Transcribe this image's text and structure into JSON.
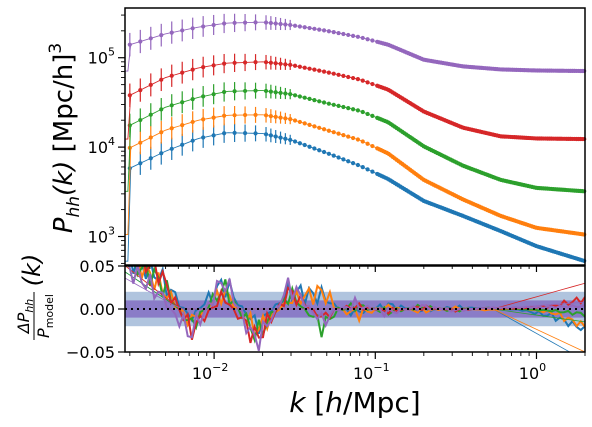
{
  "chart_data": [
    {
      "panel": "top",
      "type": "scatter",
      "ylabel": "P_{hh}(k) [Mpc/h]^3",
      "ylabel_parts": {
        "main": "P",
        "sub": "hh",
        "arg": "(k)",
        "units": " [Mpc/h]",
        "exp": "3"
      },
      "x_scale": "log",
      "y_scale": "log",
      "xlim": [
        0.0028,
        2.0
      ],
      "ylim": [
        480,
        360000
      ],
      "yticks": [
        {
          "value": 1000,
          "mant": "10",
          "exp": "3"
        },
        {
          "value": 10000,
          "mant": "10",
          "exp": "4"
        },
        {
          "value": 100000,
          "mant": "10",
          "exp": "5"
        }
      ],
      "grid": false,
      "legend": "none",
      "series_note": "five halo mass bins; points = measured spectra, thin line = model",
      "series": [
        {
          "color": "#1f77b4",
          "points": [
            [
              0.003,
              5800
            ],
            [
              0.005,
              9000
            ],
            [
              0.008,
              12500
            ],
            [
              0.012,
              14500
            ],
            [
              0.02,
              14200
            ],
            [
              0.03,
              12000
            ],
            [
              0.05,
              8600
            ],
            [
              0.08,
              6200
            ],
            [
              0.12,
              4400
            ],
            [
              0.2,
              2500
            ],
            [
              0.35,
              1700
            ],
            [
              0.6,
              1150
            ],
            [
              1.0,
              780
            ],
            [
              2.0,
              530
            ]
          ]
        },
        {
          "color": "#ff7f0e",
          "points": [
            [
              0.003,
              9800
            ],
            [
              0.005,
              15500
            ],
            [
              0.008,
              20000
            ],
            [
              0.012,
              22700
            ],
            [
              0.02,
              23000
            ],
            [
              0.03,
              20500
            ],
            [
              0.05,
              15500
            ],
            [
              0.08,
              12000
            ],
            [
              0.12,
              8500
            ],
            [
              0.2,
              4300
            ],
            [
              0.35,
              2600
            ],
            [
              0.6,
              1700
            ],
            [
              1.0,
              1250
            ],
            [
              2.0,
              1050
            ]
          ]
        },
        {
          "color": "#2ca02c",
          "points": [
            [
              0.003,
              17500
            ],
            [
              0.005,
              28000
            ],
            [
              0.008,
              36000
            ],
            [
              0.012,
              42000
            ],
            [
              0.02,
              43000
            ],
            [
              0.03,
              39000
            ],
            [
              0.05,
              31000
            ],
            [
              0.08,
              25500
            ],
            [
              0.12,
              19000
            ],
            [
              0.2,
              10200
            ],
            [
              0.35,
              6200
            ],
            [
              0.6,
              4300
            ],
            [
              1.0,
              3500
            ],
            [
              2.0,
              3200
            ]
          ]
        },
        {
          "color": "#d62728",
          "points": [
            [
              0.003,
              38000
            ],
            [
              0.005,
              60000
            ],
            [
              0.008,
              77000
            ],
            [
              0.012,
              87000
            ],
            [
              0.02,
              90000
            ],
            [
              0.03,
              83000
            ],
            [
              0.05,
              69000
            ],
            [
              0.08,
              57000
            ],
            [
              0.12,
              44000
            ],
            [
              0.2,
              25000
            ],
            [
              0.35,
              16500
            ],
            [
              0.6,
              13200
            ],
            [
              1.0,
              12500
            ],
            [
              2.0,
              12300
            ]
          ]
        },
        {
          "color": "#9467bd",
          "points": [
            [
              0.003,
              140000
            ],
            [
              0.005,
              185000
            ],
            [
              0.008,
              220000
            ],
            [
              0.012,
              244000
            ],
            [
              0.02,
              250000
            ],
            [
              0.03,
              232000
            ],
            [
              0.05,
              200000
            ],
            [
              0.08,
              170000
            ],
            [
              0.12,
              140000
            ],
            [
              0.2,
              95000
            ],
            [
              0.35,
              80000
            ],
            [
              0.6,
              74000
            ],
            [
              1.0,
              72000
            ],
            [
              2.0,
              71000
            ]
          ]
        }
      ]
    },
    {
      "panel": "bottom",
      "type": "line",
      "ylabel": "ΔP_{hh}/P_{model}(k)",
      "ylabel_parts": {
        "num": "ΔP",
        "num_sub": "hh",
        "den": "P",
        "den_sub": "model",
        "arg": "(k)"
      },
      "xlabel": "k [h/Mpc]",
      "xlabel_parts": {
        "k": "k",
        "rest1": " [",
        "h": "h",
        "rest2": "/Mpc]"
      },
      "x_scale": "log",
      "xlim": [
        0.0028,
        2.0
      ],
      "ylim": [
        -0.05,
        0.05
      ],
      "yticks": [
        "0.05",
        "0.00",
        "−0.05"
      ],
      "xticks": [
        {
          "value": 0.01,
          "mant": "10",
          "exp": "−2"
        },
        {
          "value": 0.1,
          "mant": "10",
          "exp": "−1"
        },
        {
          "value": 1,
          "mant": "10",
          "exp": "0"
        }
      ],
      "bands": [
        {
          "range": [
            -0.02,
            0.02
          ],
          "color": "#b0c4de"
        },
        {
          "range": [
            -0.01,
            0.01
          ],
          "color": "#8a7cc7"
        }
      ],
      "reference_line": {
        "y": 0.0,
        "style": "dotted",
        "color": "#000000"
      },
      "series": [
        {
          "color": "#1f77b4",
          "values": [
            0.06,
            0.04,
            -0.01,
            0.03,
            -0.02,
            0.02,
            0.015,
            -0.01,
            0.01,
            -0.005,
            0.004,
            0.002,
            -0.002,
            -0.02,
            -0.06
          ]
        },
        {
          "color": "#ff7f0e",
          "values": [
            0.07,
            0.03,
            -0.015,
            0.02,
            -0.025,
            0.01,
            0.02,
            -0.015,
            0.005,
            -0.006,
            0.003,
            -0.003,
            0.002,
            -0.01,
            -0.05
          ]
        },
        {
          "color": "#2ca02c",
          "values": [
            0.06,
            0.035,
            -0.02,
            0.025,
            -0.03,
            0.018,
            -0.02,
            0.01,
            -0.008,
            0.006,
            -0.004,
            0.003,
            0.0,
            -0.005,
            -0.015
          ]
        },
        {
          "color": "#d62728",
          "values": [
            0.07,
            0.045,
            -0.025,
            0.015,
            -0.035,
            0.02,
            -0.01,
            0.008,
            -0.006,
            0.005,
            -0.003,
            0.002,
            0.002,
            0.008,
            0.03
          ]
        },
        {
          "color": "#9467bd",
          "values": [
            0.05,
            0.02,
            -0.03,
            0.035,
            -0.04,
            0.028,
            -0.015,
            0.012,
            -0.01,
            0.007,
            -0.004,
            0.003,
            0.004,
            0.006,
            0.008
          ]
        }
      ]
    }
  ]
}
